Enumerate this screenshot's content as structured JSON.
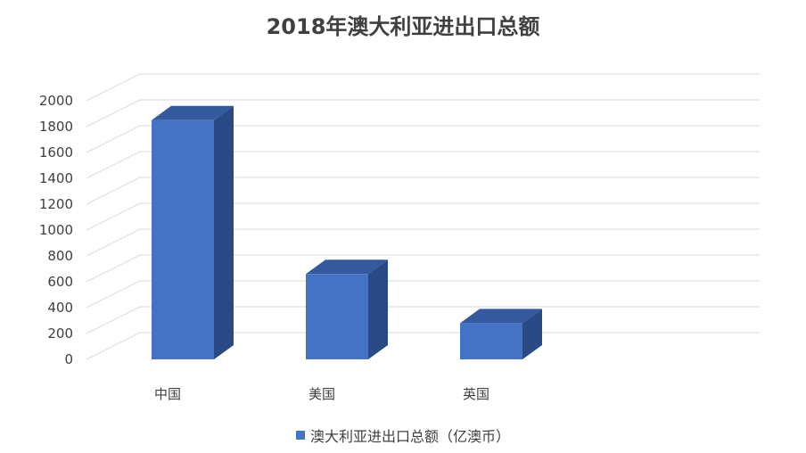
{
  "chart_data": {
    "type": "bar",
    "title": "2018年澳大利亚进出口总额",
    "categories": [
      "中国",
      "美国",
      "英国"
    ],
    "series": [
      {
        "name": "澳大利亚进出口总额（亿澳币）",
        "values": [
          1850,
          660,
          280
        ]
      }
    ],
    "ylim": [
      0,
      2000
    ],
    "yticks": [
      0,
      200,
      400,
      600,
      800,
      1000,
      1200,
      1400,
      1600,
      1800,
      2000
    ],
    "grid": true,
    "legend_position": "bottom",
    "style": "3d-column"
  },
  "colors": {
    "bar_front": "#4472c4",
    "bar_side": "#2a4a85",
    "bar_top": "#34599e",
    "grid": "#d9d9d9",
    "text": "#404040"
  }
}
